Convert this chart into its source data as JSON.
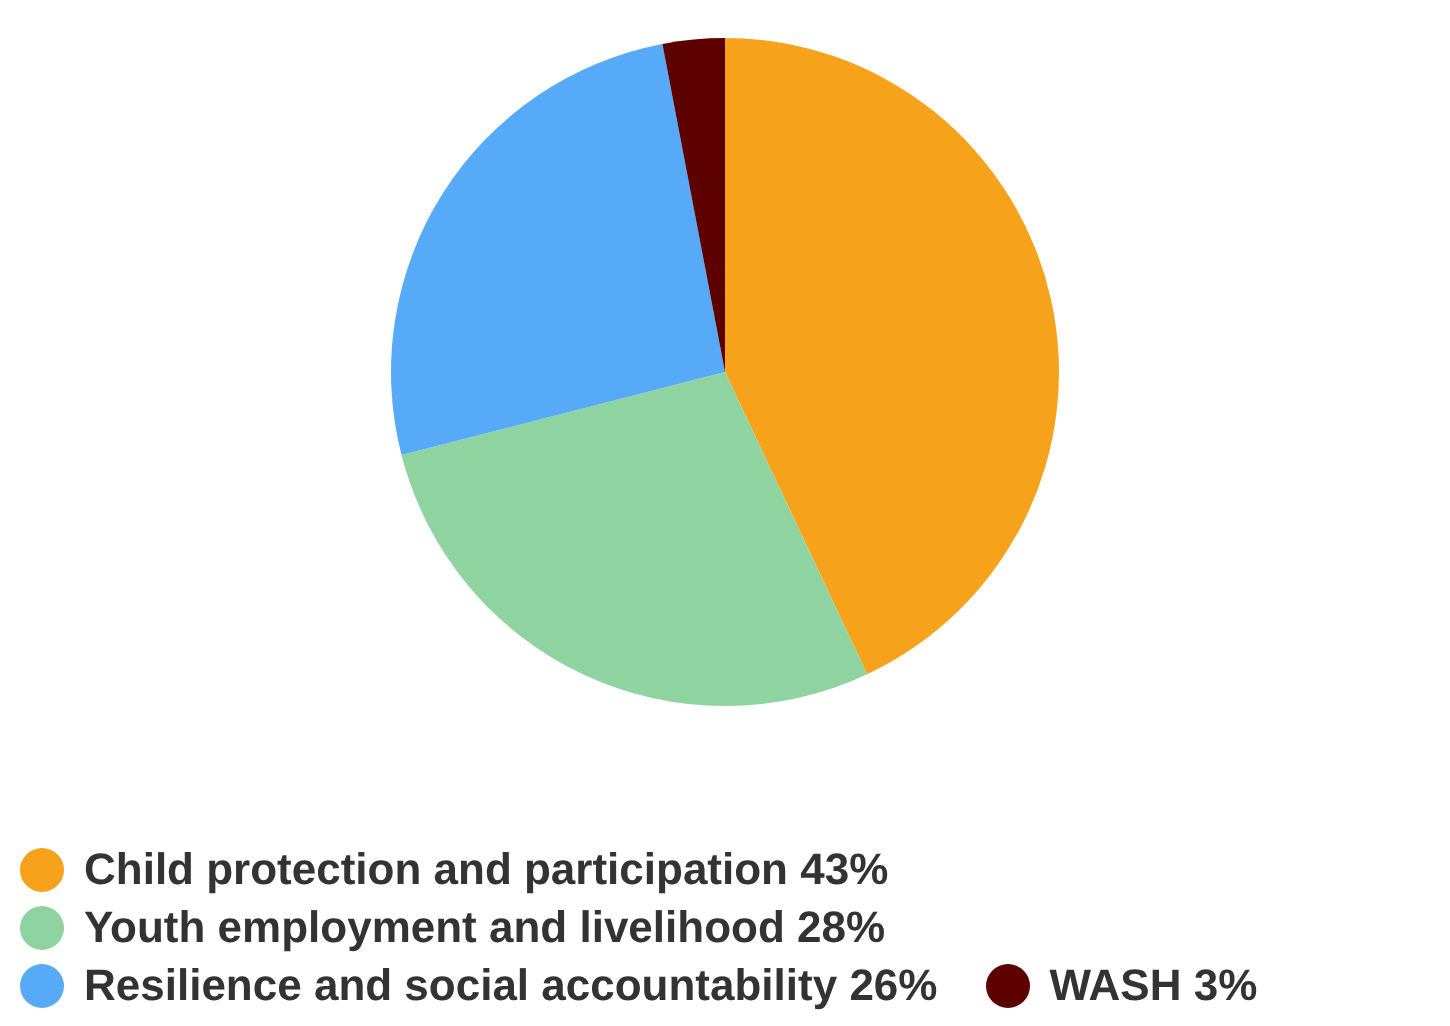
{
  "chart_data": {
    "type": "pie",
    "categories": [
      "Child protection and participation 43%",
      "Youth employment and livelihood 28%",
      "Resilience and social accountability 26%",
      "WASH 3%"
    ],
    "values": [
      43,
      28,
      26,
      3
    ],
    "colors": [
      "#f7a21b",
      "#8fd4a0",
      "#57aaf8",
      "#5c0000"
    ],
    "legend": "bottom left"
  }
}
